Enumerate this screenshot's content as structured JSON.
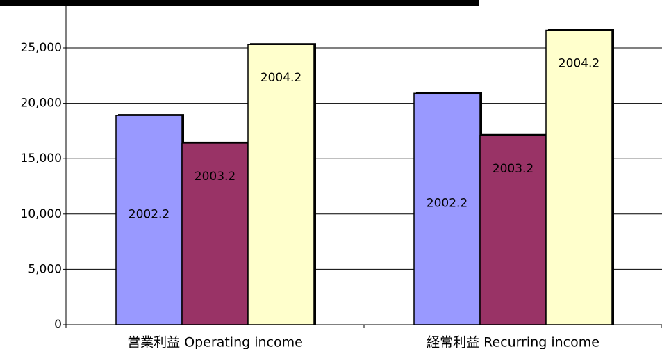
{
  "chart_data": {
    "type": "bar",
    "categories": [
      "営業利益 Operating income",
      "経常利益 Recurring income"
    ],
    "series": [
      {
        "name": "2002.2",
        "color": "#9999ff",
        "values": [
          18900,
          20900
        ]
      },
      {
        "name": "2003.2",
        "color": "#993366",
        "values": [
          16400,
          17100
        ]
      },
      {
        "name": "2004.2",
        "color": "#ffffcc",
        "values": [
          25300,
          26600
        ]
      }
    ],
    "ylim": [
      0,
      30000
    ],
    "yticks": [
      0,
      {
        "value": 5000,
        "label": "5,000"
      },
      {
        "value": 10000,
        "label": "10,000"
      },
      {
        "value": 15000,
        "label": "15,000"
      },
      {
        "value": 20000,
        "label": "20,000"
      },
      {
        "value": 25000,
        "label": "25,000"
      }
    ],
    "grid": true
  }
}
